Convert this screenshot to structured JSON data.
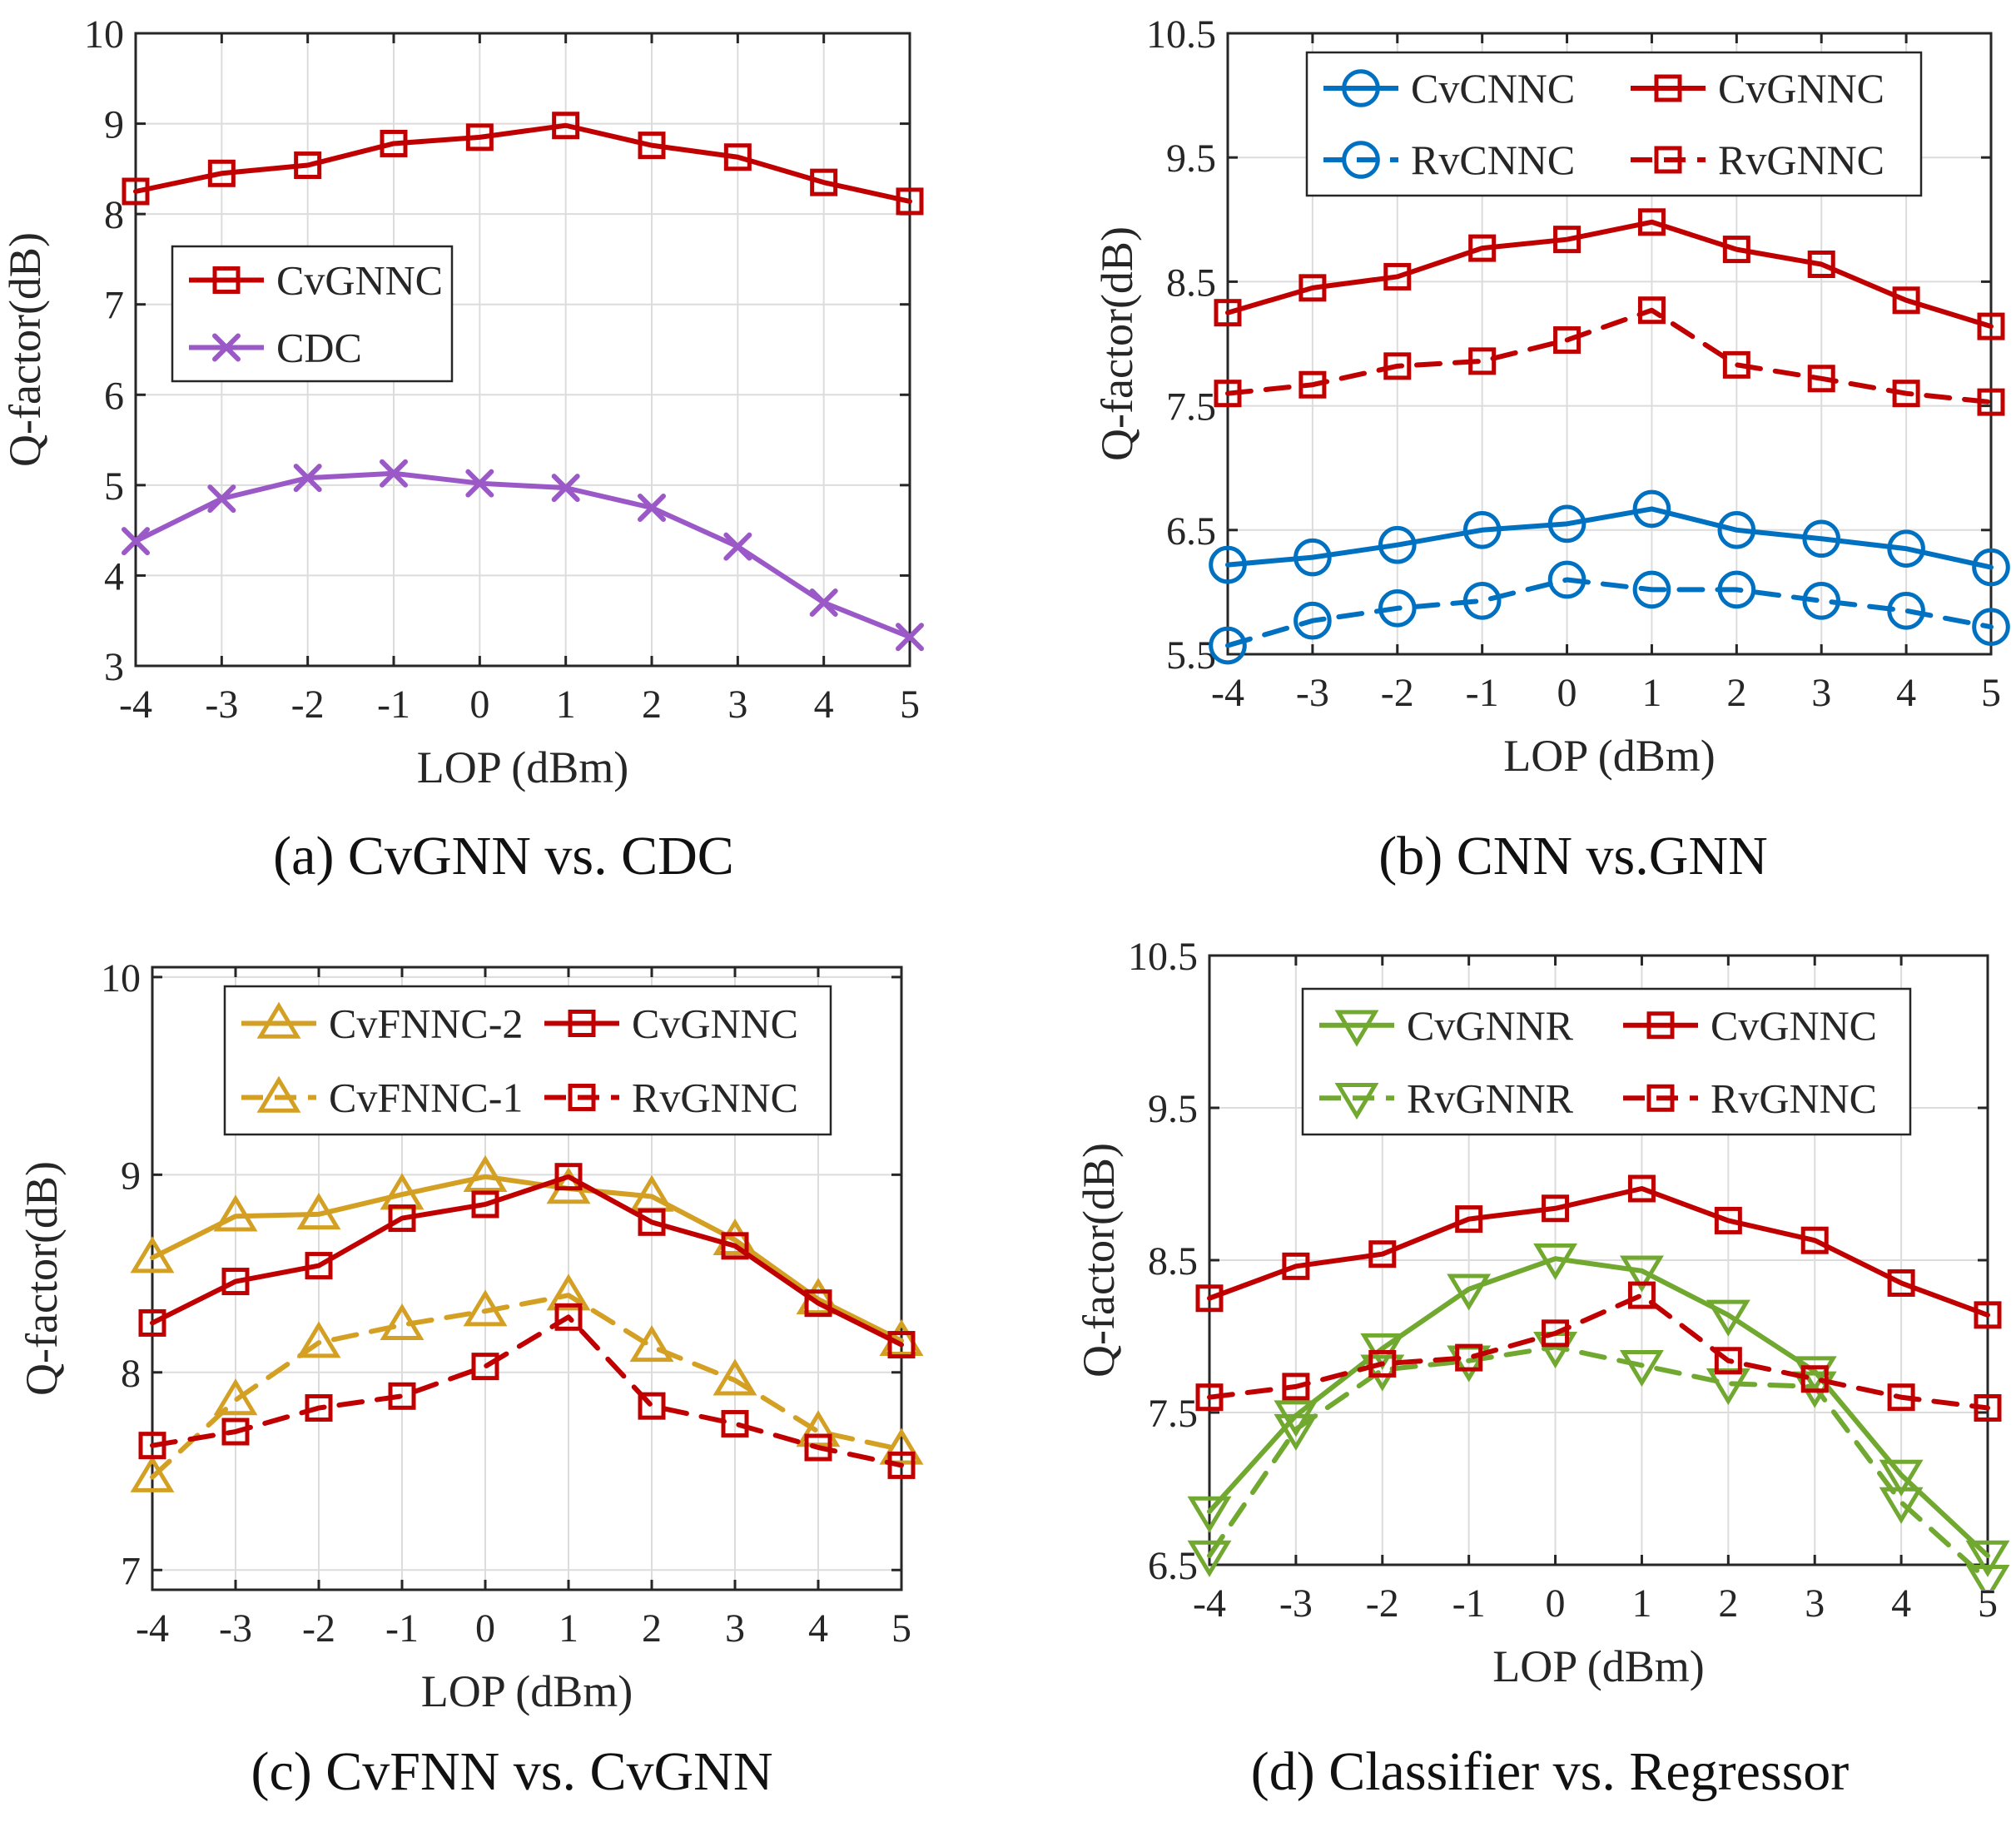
{
  "colors": {
    "red": "#C00000",
    "purple": "#9B59C8",
    "blue": "#0070C0",
    "gold": "#D4A024",
    "green": "#70A830"
  },
  "chart_data": [
    {
      "id": "a",
      "type": "line",
      "caption": "(a) CvGNN vs. CDC",
      "xlabel": "LOP (dBm)",
      "ylabel": "Q-factor(dB)",
      "x": [
        -4,
        -3,
        -2,
        -1,
        0,
        1,
        2,
        3,
        4,
        5
      ],
      "xticks": [
        "-4",
        "-3",
        "-2",
        "-1",
        "0",
        "1",
        "2",
        "3",
        "4",
        "5"
      ],
      "xlim": [
        -4,
        5
      ],
      "ylim": [
        3,
        10
      ],
      "yticks": [
        3,
        4,
        5,
        6,
        7,
        8,
        9,
        10
      ],
      "ytick_labels": [
        "3",
        "4",
        "5",
        "6",
        "7",
        "8",
        "9",
        "10"
      ],
      "grid": true,
      "legend_position": "left-center",
      "series": [
        {
          "name": "CvGNNC",
          "color": "red",
          "marker": "square",
          "dash": "solid",
          "values": [
            8.25,
            8.45,
            8.54,
            8.78,
            8.85,
            8.98,
            8.76,
            8.63,
            8.35,
            8.14
          ]
        },
        {
          "name": "CDC",
          "color": "purple",
          "marker": "x",
          "dash": "solid",
          "values": [
            4.38,
            4.85,
            5.08,
            5.13,
            5.02,
            4.97,
            4.75,
            4.32,
            3.7,
            3.32
          ]
        }
      ]
    },
    {
      "id": "b",
      "type": "line",
      "caption": "(b) CNN vs.GNN",
      "xlabel": "LOP (dBm)",
      "ylabel": "Q-factor(dB)",
      "x": [
        -4,
        -3,
        -2,
        -1,
        0,
        1,
        2,
        3,
        4,
        5
      ],
      "xticks": [
        "-4",
        "-3",
        "-2",
        "-1",
        "0",
        "1",
        "2",
        "3",
        "4",
        "5"
      ],
      "xlim": [
        -4,
        5
      ],
      "ylim": [
        5.5,
        10.5
      ],
      "yticks": [
        5.5,
        6.5,
        7.5,
        8.5,
        9.5,
        10.5
      ],
      "ytick_labels": [
        "5.5",
        "6.5",
        "7.5",
        "8.5",
        "9.5",
        "10.5"
      ],
      "grid": true,
      "legend_position": "top",
      "series": [
        {
          "name": "CvCNNC",
          "color": "blue",
          "marker": "circle",
          "dash": "solid",
          "values": [
            6.22,
            6.28,
            6.38,
            6.5,
            6.55,
            6.67,
            6.5,
            6.43,
            6.35,
            6.2
          ]
        },
        {
          "name": "CvGNNC",
          "color": "red",
          "marker": "square",
          "dash": "solid",
          "values": [
            8.25,
            8.45,
            8.54,
            8.77,
            8.84,
            8.98,
            8.76,
            8.64,
            8.35,
            8.14
          ]
        },
        {
          "name": "RvCNNC",
          "color": "blue",
          "marker": "circle",
          "dash": "dashed",
          "values": [
            5.57,
            5.77,
            5.87,
            5.93,
            6.1,
            6.02,
            6.02,
            5.93,
            5.85,
            5.72
          ]
        },
        {
          "name": "RvGNNC",
          "color": "red",
          "marker": "square",
          "dash": "dashed",
          "values": [
            7.6,
            7.67,
            7.82,
            7.86,
            8.03,
            8.27,
            7.83,
            7.72,
            7.6,
            7.53
          ]
        }
      ]
    },
    {
      "id": "c",
      "type": "line",
      "caption": "(c) CvFNN vs. CvGNN",
      "xlabel": "LOP (dBm)",
      "ylabel": "Q-factor(dB)",
      "x": [
        -4,
        -3,
        -2,
        -1,
        0,
        1,
        2,
        3,
        4,
        5
      ],
      "xticks": [
        "-4",
        "-3",
        "-2",
        "-1",
        "0",
        "1",
        "2",
        "3",
        "4",
        "5"
      ],
      "xlim": [
        -4,
        5
      ],
      "ylim": [
        6.9,
        10.05
      ],
      "yticks": [
        7,
        8,
        9,
        10
      ],
      "ytick_labels": [
        "7",
        "8",
        "9",
        "10"
      ],
      "grid": true,
      "legend_position": "top",
      "series": [
        {
          "name": "CvFNNC-2",
          "color": "gold",
          "marker": "triangle-up",
          "dash": "solid",
          "values": [
            8.58,
            8.79,
            8.8,
            8.9,
            8.99,
            8.93,
            8.89,
            8.67,
            8.37,
            8.16
          ]
        },
        {
          "name": "CvGNNC",
          "color": "red",
          "marker": "square",
          "dash": "solid",
          "values": [
            8.25,
            8.46,
            8.54,
            8.78,
            8.85,
            8.99,
            8.76,
            8.64,
            8.35,
            8.14
          ]
        },
        {
          "name": "CvFNNC-1",
          "color": "gold",
          "marker": "triangle-up",
          "dash": "dashed",
          "values": [
            7.47,
            7.86,
            8.15,
            8.24,
            8.31,
            8.39,
            8.13,
            7.96,
            7.7,
            7.61
          ]
        },
        {
          "name": "RvGNNC",
          "color": "red",
          "marker": "square",
          "dash": "dashed",
          "values": [
            7.63,
            7.7,
            7.82,
            7.88,
            8.03,
            8.28,
            7.83,
            7.74,
            7.62,
            7.53
          ]
        }
      ]
    },
    {
      "id": "d",
      "type": "line",
      "caption": "(d) Classifier vs. Regressor",
      "xlabel": "LOP (dBm)",
      "ylabel": "Q-factor(dB)",
      "x": [
        -4,
        -3,
        -2,
        -1,
        0,
        1,
        2,
        3,
        4,
        5
      ],
      "xticks": [
        "-4",
        "-3",
        "-2",
        "-1",
        "0",
        "1",
        "2",
        "3",
        "4",
        "5"
      ],
      "xlim": [
        -4,
        5
      ],
      "ylim": [
        6.5,
        10.5
      ],
      "yticks": [
        6.5,
        7.5,
        8.5,
        9.5,
        10.5
      ],
      "ytick_labels": [
        "6.5",
        "7.5",
        "8.5",
        "9.5",
        "10.5"
      ],
      "grid": true,
      "legend_position": "top",
      "series": [
        {
          "name": "CvGNNR",
          "color": "green",
          "marker": "triangle-down",
          "dash": "solid",
          "values": [
            6.85,
            7.48,
            7.92,
            8.31,
            8.51,
            8.43,
            8.14,
            7.77,
            7.09,
            6.56
          ]
        },
        {
          "name": "CvGNNC",
          "color": "red",
          "marker": "square",
          "dash": "solid",
          "values": [
            8.25,
            8.46,
            8.54,
            8.77,
            8.84,
            8.97,
            8.76,
            8.63,
            8.35,
            8.14
          ]
        },
        {
          "name": "RvGNNR",
          "color": "green",
          "marker": "triangle-down",
          "dash": "dashed",
          "values": [
            6.56,
            7.39,
            7.78,
            7.84,
            7.93,
            7.81,
            7.69,
            7.67,
            6.91,
            6.4
          ]
        },
        {
          "name": "RvGNNC",
          "color": "red",
          "marker": "square",
          "dash": "dashed",
          "values": [
            7.6,
            7.67,
            7.82,
            7.86,
            8.02,
            8.27,
            7.84,
            7.72,
            7.6,
            7.53
          ]
        }
      ]
    }
  ]
}
